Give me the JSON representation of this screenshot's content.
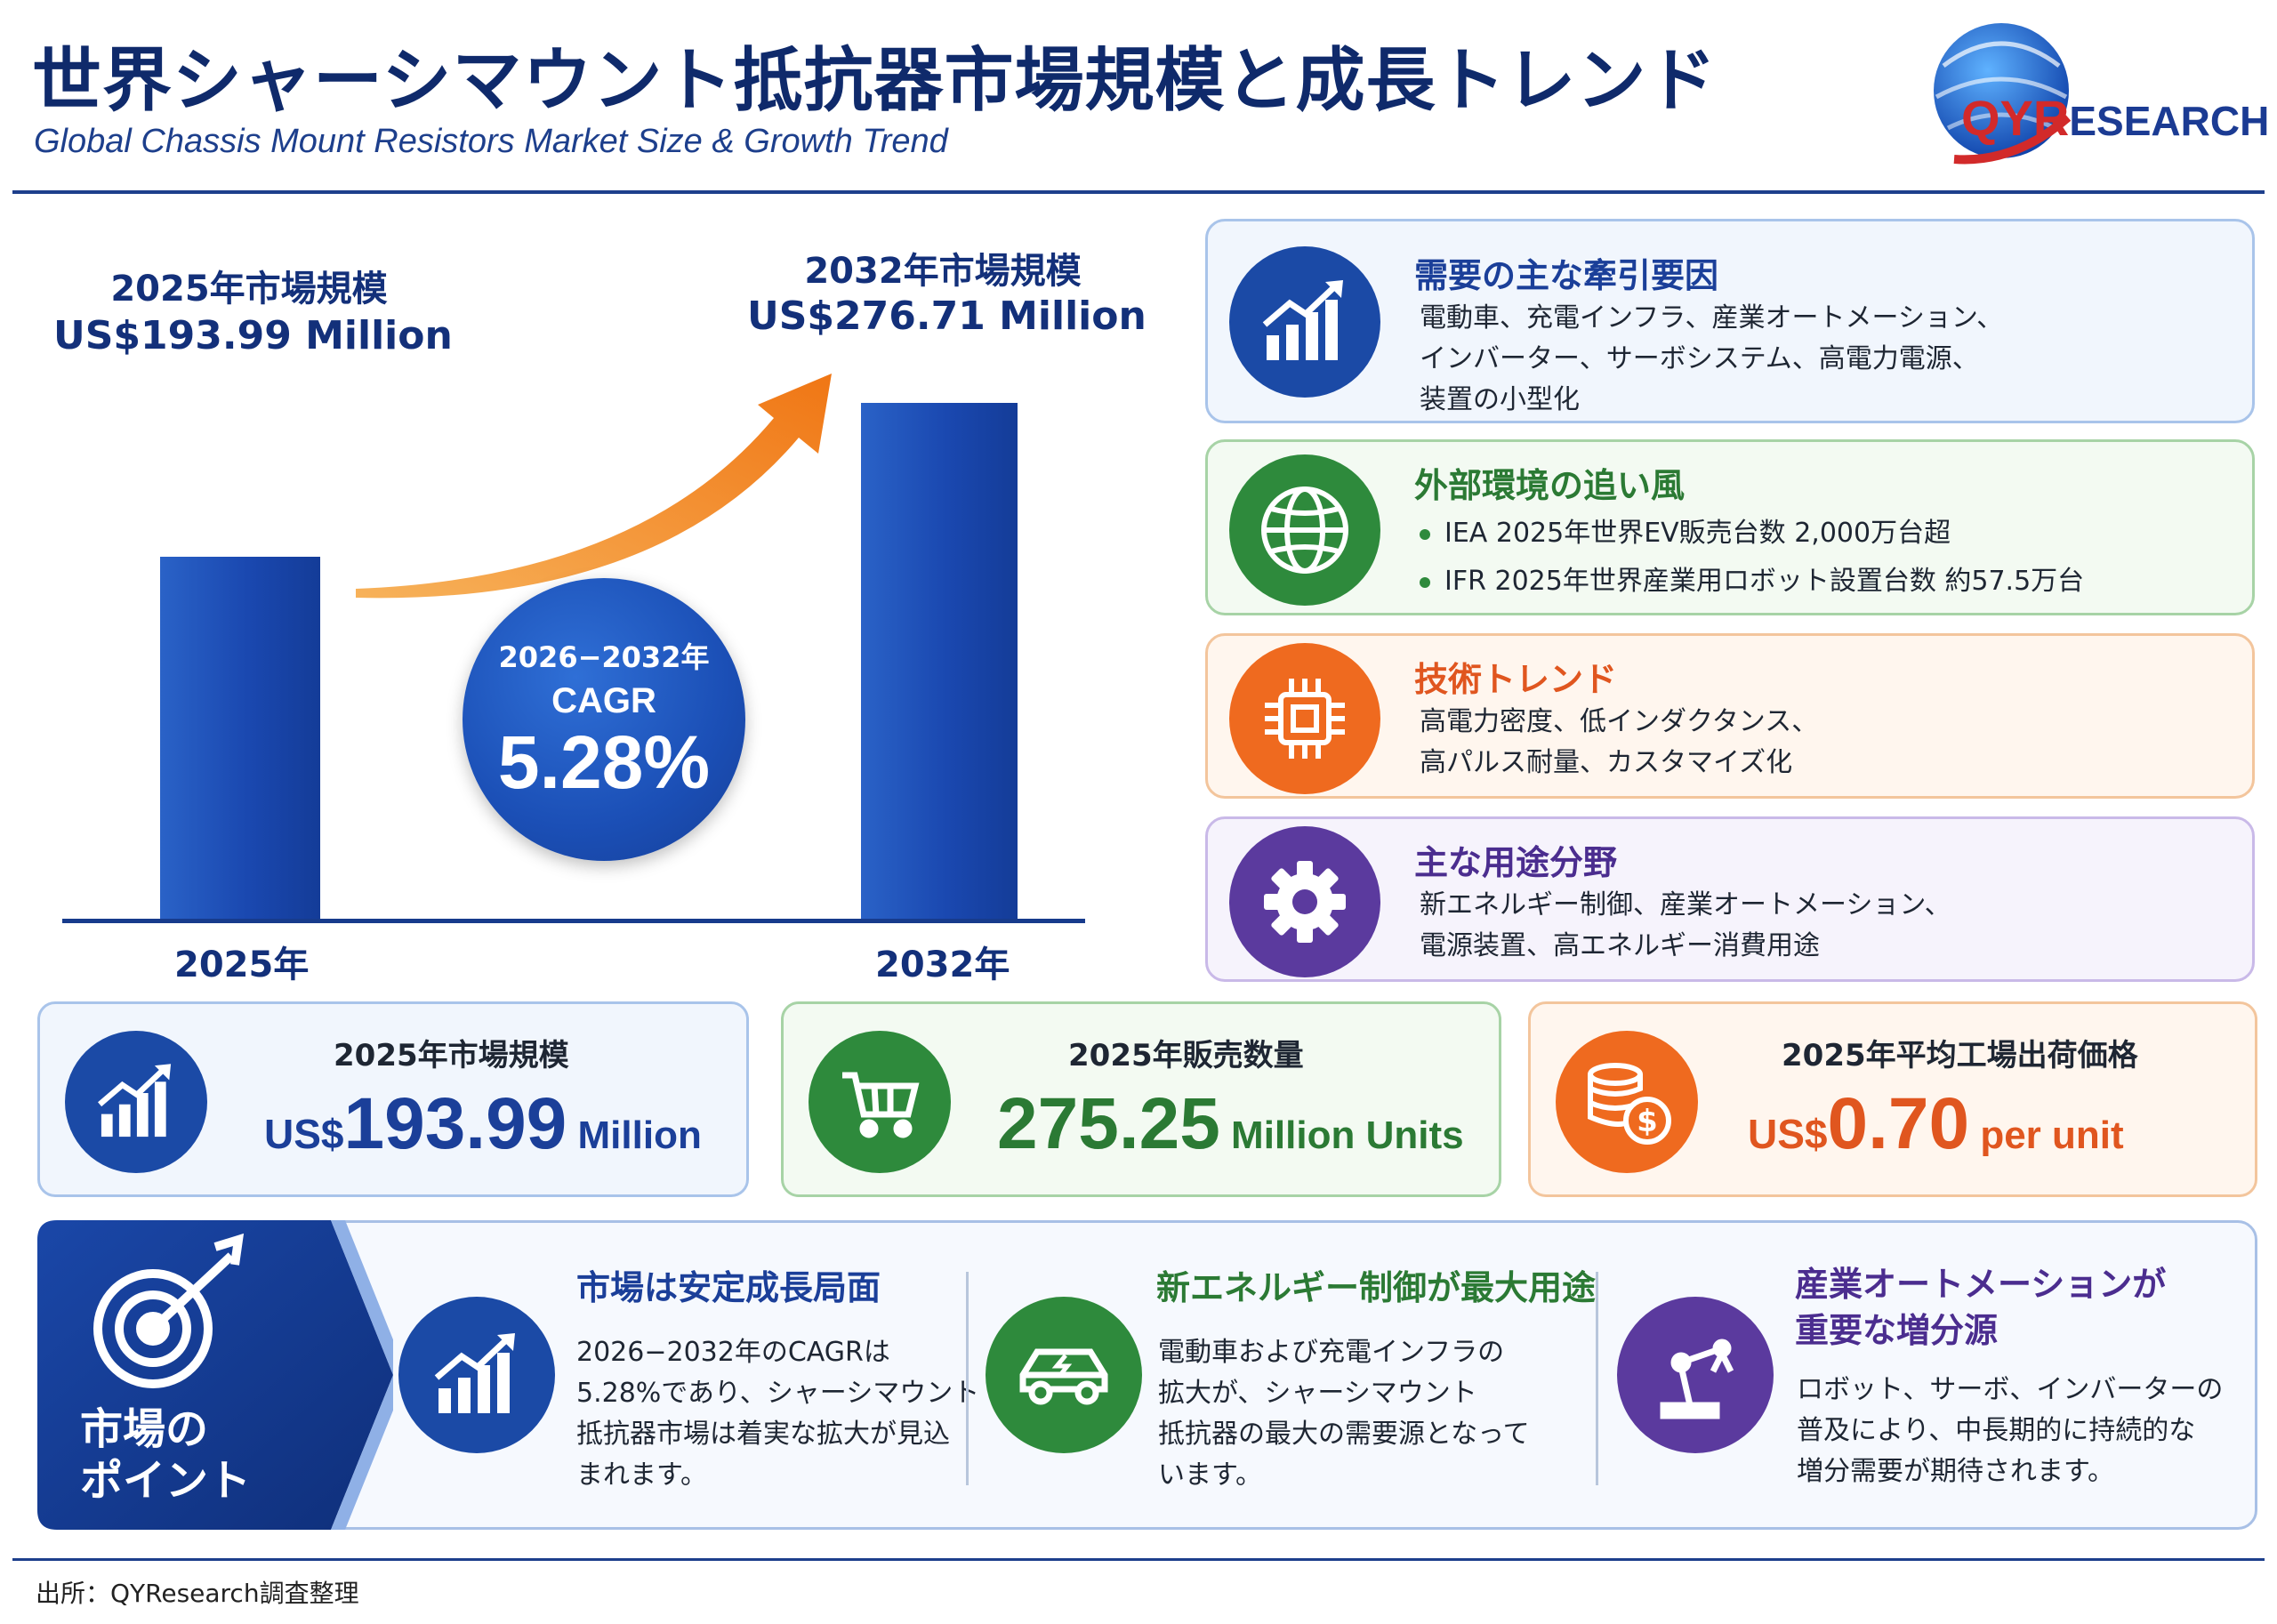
{
  "header": {
    "title": "世界シャーシマウント抵抗器市場規模と成長トレンド",
    "subtitle": "Global Chassis Mount Resistors Market Size & Growth Trend",
    "logo_q": "QYR",
    "logo_rest": "ESEARCH"
  },
  "chart_data": {
    "type": "bar",
    "categories": [
      "2025年",
      "2032年"
    ],
    "values": [
      193.99,
      276.71
    ],
    "unit": "US$ Million",
    "annotations": [
      {
        "title": "2025年市場規模",
        "value_text": "US$193.99 Million"
      },
      {
        "title": "2032年市場規模",
        "value_text": "US$276.71 Million"
      }
    ],
    "cagr": {
      "period": "2026−2032年",
      "label": "CAGR",
      "value": "5.28%"
    }
  },
  "right_cards": [
    {
      "icon": "growth-chart-icon",
      "title": "需要の主な牽引要因",
      "lines": [
        "電動車、充電インフラ、産業オートメーション、",
        "インバーター、サーボシステム、高電力電源、",
        "装置の小型化"
      ],
      "accent": "#1b4aa6"
    },
    {
      "icon": "globe-icon",
      "title": "外部環境の追い風",
      "bullets": [
        "IEA 2025年世界EV販売台数 2,000万台超",
        "IFR 2025年世界産業用ロボット設置台数 約57.5万台"
      ],
      "accent": "#2e8a3c"
    },
    {
      "icon": "chip-icon",
      "title": "技術トレンド",
      "lines": [
        "高電力密度、低インダクタンス、",
        "高パルス耐量、カスタマイズ化"
      ],
      "accent": "#e0561f"
    },
    {
      "icon": "gear-icon",
      "title": "主な用途分野",
      "lines": [
        "新エネルギー制御、産業オートメーション、",
        "電源装置、高エネルギー消費用途"
      ],
      "accent": "#5b3a9e"
    }
  ],
  "stats": [
    {
      "icon": "growth-chart-icon",
      "label": "2025年市場規模",
      "prefix": "US$",
      "number": "193.99",
      "suffix": " Million",
      "color": "#1b3f99"
    },
    {
      "icon": "cart-icon",
      "label": "2025年販売数量",
      "prefix": "",
      "number": "275.25",
      "suffix": " Million Units",
      "color": "#2b7a34"
    },
    {
      "icon": "coins-icon",
      "label": "2025年平均工場出荷価格",
      "prefix": "US$",
      "number": "0.70",
      "suffix": " per unit",
      "color": "#e0561f"
    }
  ],
  "points": {
    "tab_label_1": "市場の",
    "tab_label_2": "ポイント",
    "items": [
      {
        "icon": "growth-chart-icon",
        "title_lines": [
          "市場は安定成長局面"
        ],
        "body": [
          "2026−2032年のCAGRは",
          "5.28%であり、シャーシマウント",
          "抵抗器市場は着実な拡大が見込",
          "まれます。"
        ],
        "color": "#1b3f99"
      },
      {
        "icon": "ev-car-icon",
        "title_lines": [
          "新エネルギー制御が最大用途"
        ],
        "body": [
          "電動車および充電インフラの",
          "拡大が、シャーシマウント",
          "抵抗器の最大の需要源となって",
          "います。"
        ],
        "color": "#2b7a34"
      },
      {
        "icon": "robot-arm-icon",
        "title_lines": [
          "産業オートメーションが",
          "重要な増分源"
        ],
        "body": [
          "ロボット、サーボ、インバーターの",
          "普及により、中長期的に持続的な",
          "増分需要が期待されます。"
        ],
        "color": "#5b3a9e"
      }
    ]
  },
  "footer": {
    "source": "出所：QYResearch調査整理"
  }
}
